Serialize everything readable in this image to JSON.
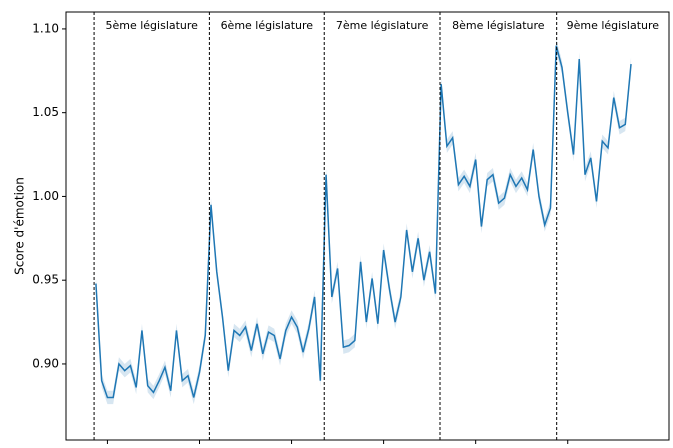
{
  "chart_data": {
    "type": "line",
    "ylabel": "Score d'émotion",
    "x": [
      1999.5,
      1999.75,
      2000,
      2000.25,
      2000.5,
      2000.75,
      2001,
      2001.25,
      2001.5,
      2001.75,
      2002,
      2002.25,
      2002.5,
      2002.75,
      2003,
      2003.25,
      2003.5,
      2003.75,
      2004,
      2004.25,
      2004.5,
      2004.75,
      2005,
      2005.25,
      2005.5,
      2005.75,
      2006,
      2006.25,
      2006.5,
      2006.75,
      2007,
      2007.25,
      2007.5,
      2007.75,
      2008,
      2008.25,
      2008.5,
      2008.75,
      2009,
      2009.25,
      2009.5,
      2009.75,
      2010,
      2010.25,
      2010.5,
      2010.75,
      2011,
      2011.25,
      2011.5,
      2011.75,
      2012,
      2012.25,
      2012.5,
      2012.75,
      2013,
      2013.25,
      2013.5,
      2013.75,
      2014,
      2014.25,
      2014.5,
      2014.75,
      2015,
      2015.25,
      2015.5,
      2015.75,
      2016,
      2016.25,
      2016.5,
      2016.75,
      2017,
      2017.25,
      2017.5,
      2017.75,
      2018,
      2018.25,
      2018.5,
      2018.75,
      2019,
      2019.25,
      2019.5,
      2019.75,
      2020,
      2020.25,
      2020.5,
      2020.75,
      2021,
      2021.25,
      2021.5,
      2021.75,
      2022,
      2022.25,
      2022.5,
      2022.75
    ],
    "series": [
      {
        "color": "#1f77b4",
        "band": 0.004,
        "values": [
          0.948,
          0.89,
          0.88,
          0.88,
          0.9,
          0.896,
          0.899,
          0.886,
          0.92,
          0.887,
          0.883,
          0.89,
          0.898,
          0.884,
          0.92,
          0.89,
          0.893,
          0.88,
          0.895,
          0.917,
          0.995,
          0.955,
          0.928,
          0.896,
          0.92,
          0.917,
          0.922,
          0.908,
          0.924,
          0.906,
          0.919,
          0.917,
          0.903,
          0.92,
          0.928,
          0.922,
          0.907,
          0.921,
          0.94,
          0.89,
          1.013,
          0.94,
          0.957,
          0.91,
          0.911,
          0.914,
          0.961,
          0.925,
          0.951,
          0.924,
          0.968,
          0.945,
          0.925,
          0.94,
          0.98,
          0.955,
          0.975,
          0.95,
          0.967,
          0.942,
          1.067,
          1.03,
          1.035,
          1.007,
          1.012,
          1.006,
          1.022,
          0.982,
          1.01,
          1.013,
          0.996,
          0.999,
          1.013,
          1.006,
          1.011,
          1.004,
          1.028,
          1.0,
          0.983,
          0.993,
          1.09,
          1.077,
          1.05,
          1.025,
          1.082,
          1.013,
          1.023,
          0.997,
          1.033,
          1.029,
          1.059,
          1.041,
          1.043,
          1.079
        ]
      }
    ],
    "vlines": [
      {
        "x": 1999.42,
        "label": "5ème législature"
      },
      {
        "x": 2004.43,
        "label": "6ème législature"
      },
      {
        "x": 2009.42,
        "label": "7ème législature"
      },
      {
        "x": 2014.45,
        "label": "8ème législature"
      },
      {
        "x": 2019.52,
        "label": "9ème législature"
      }
    ],
    "xlim": [
      1998.2,
      2024.4
    ],
    "xticks": [
      2000,
      2004,
      2008,
      2012,
      2016,
      2020
    ],
    "ylim": [
      0.8546,
      1.1101
    ],
    "yticks": [
      {
        "value": 0.9,
        "label": "0.90"
      },
      {
        "value": 0.95,
        "label": "0.95"
      },
      {
        "value": 1.0,
        "label": "1.00"
      },
      {
        "value": 1.05,
        "label": "1.05"
      },
      {
        "value": 1.1,
        "label": "1.10"
      }
    ]
  }
}
